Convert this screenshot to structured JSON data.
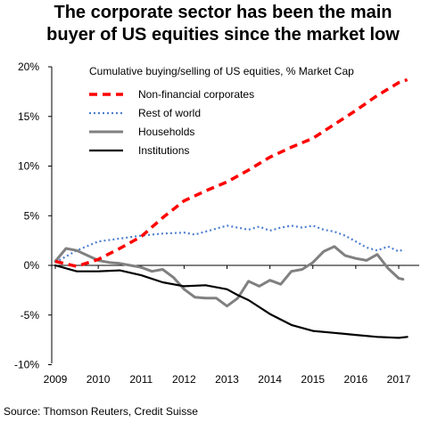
{
  "title_line1": "The corporate sector has been the main",
  "title_line2": "buyer of US equities since the market low",
  "source": "Source: Thomson Reuters, Credit Suisse",
  "chart_data": {
    "type": "line",
    "subtitle": "Cumulative buying/selling of US equities, % Market Cap",
    "x_ticks": [
      "2009",
      "2010",
      "2011",
      "2012",
      "2013",
      "2014",
      "2015",
      "2016",
      "2017"
    ],
    "y_ticks": [
      "20%",
      "15%",
      "10%",
      "5%",
      "0%",
      "-5%",
      "-10%"
    ],
    "y_tick_values": [
      20,
      15,
      10,
      5,
      0,
      -5,
      -10
    ],
    "xlim": [
      2009,
      2017.4
    ],
    "ylim": [
      -10,
      20
    ],
    "legend_position": "top-left (inside plot)",
    "series": [
      {
        "name": "Non-financial corporates",
        "color": "#ff0000",
        "style": "dashed",
        "points": [
          [
            2009.0,
            0.4
          ],
          [
            2009.5,
            -0.1
          ],
          [
            2010.0,
            0.6
          ],
          [
            2010.5,
            1.7
          ],
          [
            2011.0,
            2.9
          ],
          [
            2011.5,
            4.8
          ],
          [
            2012.0,
            6.5
          ],
          [
            2012.5,
            7.5
          ],
          [
            2013.0,
            8.4
          ],
          [
            2013.5,
            9.6
          ],
          [
            2014.0,
            10.9
          ],
          [
            2014.5,
            11.9
          ],
          [
            2015.0,
            12.8
          ],
          [
            2015.5,
            14.2
          ],
          [
            2016.0,
            15.6
          ],
          [
            2016.5,
            17.1
          ],
          [
            2017.0,
            18.4
          ],
          [
            2017.2,
            18.7
          ]
        ]
      },
      {
        "name": "Rest of world",
        "color": "#4f7fcf",
        "style": "dotted",
        "points": [
          [
            2009.0,
            0.3
          ],
          [
            2009.25,
            0.9
          ],
          [
            2009.5,
            1.5
          ],
          [
            2010.0,
            2.4
          ],
          [
            2010.5,
            2.7
          ],
          [
            2011.0,
            3.0
          ],
          [
            2011.5,
            3.2
          ],
          [
            2012.0,
            3.3
          ],
          [
            2012.25,
            3.1
          ],
          [
            2012.5,
            3.4
          ],
          [
            2013.0,
            4.0
          ],
          [
            2013.25,
            3.8
          ],
          [
            2013.5,
            3.6
          ],
          [
            2013.75,
            3.9
          ],
          [
            2014.0,
            3.5
          ],
          [
            2014.25,
            3.8
          ],
          [
            2014.5,
            4.0
          ],
          [
            2014.75,
            3.8
          ],
          [
            2015.0,
            4.0
          ],
          [
            2015.25,
            3.6
          ],
          [
            2015.5,
            3.4
          ],
          [
            2015.75,
            3.0
          ],
          [
            2016.0,
            2.4
          ],
          [
            2016.25,
            1.8
          ],
          [
            2016.5,
            1.5
          ],
          [
            2016.75,
            1.9
          ],
          [
            2017.0,
            1.4
          ],
          [
            2017.1,
            1.6
          ]
        ]
      },
      {
        "name": "Households",
        "color": "#808080",
        "style": "solid",
        "points": [
          [
            2009.0,
            0.4
          ],
          [
            2009.25,
            1.7
          ],
          [
            2009.5,
            1.5
          ],
          [
            2009.75,
            1.0
          ],
          [
            2010.0,
            0.5
          ],
          [
            2010.25,
            0.3
          ],
          [
            2010.5,
            0.2
          ],
          [
            2010.75,
            0.0
          ],
          [
            2011.0,
            -0.2
          ],
          [
            2011.25,
            -0.6
          ],
          [
            2011.5,
            -0.4
          ],
          [
            2011.75,
            -1.2
          ],
          [
            2012.0,
            -2.4
          ],
          [
            2012.25,
            -3.2
          ],
          [
            2012.5,
            -3.3
          ],
          [
            2012.75,
            -3.3
          ],
          [
            2013.0,
            -4.1
          ],
          [
            2013.25,
            -3.3
          ],
          [
            2013.5,
            -1.6
          ],
          [
            2013.75,
            -2.1
          ],
          [
            2014.0,
            -1.5
          ],
          [
            2014.25,
            -1.9
          ],
          [
            2014.5,
            -0.6
          ],
          [
            2014.75,
            -0.4
          ],
          [
            2015.0,
            0.3
          ],
          [
            2015.25,
            1.4
          ],
          [
            2015.5,
            1.9
          ],
          [
            2015.75,
            1.0
          ],
          [
            2016.0,
            0.7
          ],
          [
            2016.25,
            0.5
          ],
          [
            2016.5,
            1.1
          ],
          [
            2016.75,
            -0.3
          ],
          [
            2017.0,
            -1.3
          ],
          [
            2017.1,
            -1.4
          ]
        ]
      },
      {
        "name": "Institutions",
        "color": "#000000",
        "style": "solid",
        "points": [
          [
            2009.0,
            0.0
          ],
          [
            2009.25,
            -0.3
          ],
          [
            2009.5,
            -0.6
          ],
          [
            2010.0,
            -0.6
          ],
          [
            2010.5,
            -0.5
          ],
          [
            2011.0,
            -1.0
          ],
          [
            2011.5,
            -1.7
          ],
          [
            2012.0,
            -2.1
          ],
          [
            2012.5,
            -2.0
          ],
          [
            2013.0,
            -2.4
          ],
          [
            2013.25,
            -3.0
          ],
          [
            2013.5,
            -3.5
          ],
          [
            2014.0,
            -4.9
          ],
          [
            2014.5,
            -6.0
          ],
          [
            2015.0,
            -6.6
          ],
          [
            2015.5,
            -6.8
          ],
          [
            2016.0,
            -7.0
          ],
          [
            2016.5,
            -7.2
          ],
          [
            2017.0,
            -7.3
          ],
          [
            2017.2,
            -7.2
          ]
        ]
      }
    ]
  }
}
